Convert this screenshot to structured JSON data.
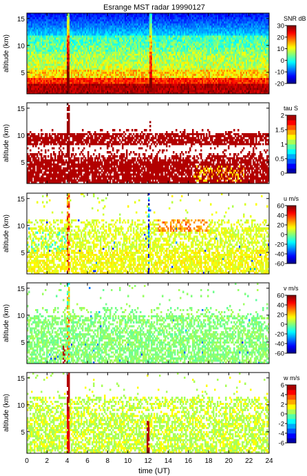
{
  "title": "Esrange MST radar 19990127",
  "x_axis": {
    "label": "time (UT)",
    "range": [
      0,
      24
    ],
    "ticks": [
      0,
      2,
      4,
      6,
      8,
      10,
      12,
      14,
      16,
      18,
      20,
      22,
      24
    ]
  },
  "chart_data": [
    {
      "type": "heatmap",
      "ylabel": "altitude (km)",
      "xlim": [
        0,
        24
      ],
      "ylim": [
        1,
        16
      ],
      "yticks": [
        5,
        10,
        15
      ],
      "colorbar": {
        "label": "SNR dB",
        "range": [
          -20,
          30
        ],
        "ticks": [
          -20,
          -10,
          0,
          10,
          20,
          30
        ],
        "colormap": "jet"
      },
      "description": "Full coverage; SNR high (20-30 dB) below ~3 km, ~0-10 dB at 5-12 km, low (-10 to -20 dB) above 12 km; spikes near 4.1 UT and 12.3 UT"
    },
    {
      "type": "heatmap",
      "ylabel": "altitude (km)",
      "xlim": [
        0,
        24
      ],
      "ylim": [
        1,
        16
      ],
      "yticks": [
        5,
        10,
        15
      ],
      "colorbar": {
        "label": "tau S",
        "range": [
          0,
          2
        ],
        "ticks": [
          0,
          0.5,
          1,
          1.5,
          2
        ],
        "colormap": "jet-discrete"
      },
      "description": "Mostly saturated (~2 s) in 1-7 km and 8-10 km layers; some 1.2-1.6 s near 17-21 UT around 2-4 km"
    },
    {
      "type": "heatmap",
      "ylabel": "altitude (km)",
      "xlim": [
        0,
        24
      ],
      "ylim": [
        1,
        16
      ],
      "yticks": [
        5,
        10,
        15
      ],
      "colorbar": {
        "label": "u m/s",
        "range": [
          -60,
          60
        ],
        "ticks": [
          -60,
          -40,
          -20,
          0,
          20,
          40,
          60
        ],
        "colormap": "jet"
      },
      "description": "Zonal wind mostly 0-20 m/s below ~11 km; sparse outliers near 4.1 UT and 12.1 UT"
    },
    {
      "type": "heatmap",
      "ylabel": "altitude (km)",
      "xlim": [
        0,
        24
      ],
      "ylim": [
        1,
        16
      ],
      "yticks": [
        5,
        10,
        15
      ],
      "colorbar": {
        "label": "v m/s",
        "range": [
          -60,
          60
        ],
        "ticks": [
          -60,
          -40,
          -20,
          0,
          20,
          40,
          60
        ],
        "colormap": "jet"
      },
      "description": "Meridional wind mostly -10 to +10 m/s below ~10 km"
    },
    {
      "type": "heatmap",
      "ylabel": "altitude (km)",
      "xlim": [
        0,
        24
      ],
      "ylim": [
        1,
        16
      ],
      "yticks": [
        5,
        10,
        15
      ],
      "colorbar": {
        "label": "w m/s",
        "range": [
          -6,
          6
        ],
        "ticks": [
          -6,
          -4,
          -2,
          0,
          2,
          4,
          6
        ],
        "colormap": "jet-discrete"
      },
      "description": "Vertical wind near 0-1 m/s below ~11 km; strong positive spikes near 4.0 UT and 12.0 UT"
    }
  ]
}
